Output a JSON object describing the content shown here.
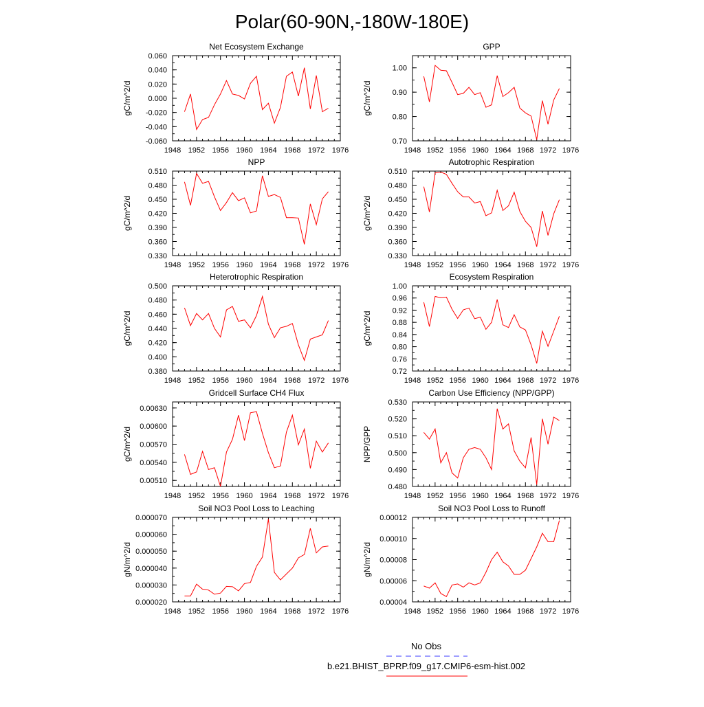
{
  "figure": {
    "title": "Polar(60-90N,-180W-180E)",
    "legend": {
      "entries": [
        {
          "label": "No Obs",
          "color": "#3c3cff",
          "style": "dashed"
        },
        {
          "label": "b.e21.BHIST_BPRP.f09_g17.CMIP6-esm-hist.002",
          "color": "#ff0000",
          "style": "solid"
        }
      ]
    }
  },
  "chart_data": [
    {
      "type": "line",
      "title": "Net Ecosystem Exchange",
      "ylabel": "gC/m^2/d",
      "xlim": [
        1948,
        1976
      ],
      "ylim": [
        -0.06,
        0.06
      ],
      "xticks": [
        "1948",
        "1952",
        "1956",
        "1960",
        "1964",
        "1968",
        "1972",
        "1976"
      ],
      "yticks": [
        "-0.060",
        "-0.040",
        "-0.020",
        "0.000",
        "0.020",
        "0.040",
        "0.060"
      ],
      "series": [
        {
          "color": "#ff0000",
          "x": [
            1950,
            1951,
            1952,
            1953,
            1954,
            1955,
            1956,
            1957,
            1958,
            1959,
            1960,
            1961,
            1962,
            1963,
            1964,
            1965,
            1966,
            1967,
            1968,
            1969,
            1970,
            1971,
            1972,
            1973,
            1974
          ],
          "values": [
            -0.019,
            0.006,
            -0.044,
            -0.03,
            -0.027,
            -0.009,
            0.006,
            0.025,
            0.006,
            0.004,
            -0.001,
            0.021,
            0.031,
            -0.016,
            -0.007,
            -0.035,
            -0.013,
            0.031,
            0.037,
            0.003,
            0.043,
            -0.015,
            0.032,
            -0.019,
            -0.014
          ]
        }
      ]
    },
    {
      "type": "line",
      "title": "GPP",
      "ylabel": "gC/m^2/d",
      "xlim": [
        1948,
        1976
      ],
      "ylim": [
        0.7,
        1.05
      ],
      "xticks": [
        "1948",
        "1952",
        "1956",
        "1960",
        "1964",
        "1968",
        "1972",
        "1976"
      ],
      "yticks": [
        "0.70",
        "0.80",
        "0.90",
        "1.00"
      ],
      "series": [
        {
          "color": "#ff0000",
          "x": [
            1950,
            1951,
            1952,
            1953,
            1954,
            1955,
            1956,
            1957,
            1958,
            1959,
            1960,
            1961,
            1962,
            1963,
            1964,
            1965,
            1966,
            1967,
            1968,
            1969,
            1970,
            1971,
            1972,
            1973,
            1974
          ],
          "values": [
            0.965,
            0.86,
            1.01,
            0.99,
            0.988,
            0.94,
            0.89,
            0.895,
            0.92,
            0.89,
            0.898,
            0.838,
            0.848,
            0.968,
            0.882,
            0.898,
            0.92,
            0.835,
            0.815,
            0.802,
            0.705,
            0.865,
            0.768,
            0.868,
            0.915
          ]
        }
      ]
    },
    {
      "type": "line",
      "title": "NPP",
      "ylabel": "gC/m^2/d",
      "xlim": [
        1948,
        1976
      ],
      "ylim": [
        0.33,
        0.51
      ],
      "xticks": [
        "1948",
        "1952",
        "1956",
        "1960",
        "1964",
        "1968",
        "1972",
        "1976"
      ],
      "yticks": [
        "0.330",
        "0.360",
        "0.390",
        "0.420",
        "0.450",
        "0.480",
        "0.510"
      ],
      "series": [
        {
          "color": "#ff0000",
          "x": [
            1950,
            1951,
            1952,
            1953,
            1954,
            1955,
            1956,
            1957,
            1958,
            1959,
            1960,
            1961,
            1962,
            1963,
            1964,
            1965,
            1966,
            1967,
            1968,
            1969,
            1970,
            1971,
            1972,
            1973,
            1974
          ],
          "values": [
            0.487,
            0.437,
            0.505,
            0.484,
            0.488,
            0.455,
            0.426,
            0.443,
            0.464,
            0.447,
            0.453,
            0.421,
            0.425,
            0.5,
            0.456,
            0.46,
            0.454,
            0.411,
            0.411,
            0.41,
            0.354,
            0.44,
            0.396,
            0.451,
            0.466
          ]
        }
      ]
    },
    {
      "type": "line",
      "title": "Autotrophic Respiration",
      "ylabel": "gC/m^2/d",
      "xlim": [
        1948,
        1976
      ],
      "ylim": [
        0.33,
        0.51
      ],
      "xticks": [
        "1948",
        "1952",
        "1956",
        "1960",
        "1964",
        "1968",
        "1972",
        "1976"
      ],
      "yticks": [
        "0.330",
        "0.360",
        "0.390",
        "0.420",
        "0.450",
        "0.480",
        "0.510"
      ],
      "series": [
        {
          "color": "#ff0000",
          "x": [
            1950,
            1951,
            1952,
            1953,
            1954,
            1955,
            1956,
            1957,
            1958,
            1959,
            1960,
            1961,
            1962,
            1963,
            1964,
            1965,
            1966,
            1967,
            1968,
            1969,
            1970,
            1971,
            1972,
            1973,
            1974
          ],
          "values": [
            0.477,
            0.423,
            0.506,
            0.508,
            0.503,
            0.484,
            0.466,
            0.455,
            0.455,
            0.442,
            0.445,
            0.415,
            0.421,
            0.469,
            0.426,
            0.436,
            0.465,
            0.424,
            0.403,
            0.39,
            0.349,
            0.425,
            0.373,
            0.419,
            0.449
          ]
        }
      ]
    },
    {
      "type": "line",
      "title": "Heterotrophic Respiration",
      "ylabel": "gC/m^2/d",
      "xlim": [
        1948,
        1976
      ],
      "ylim": [
        0.38,
        0.5
      ],
      "xticks": [
        "1948",
        "1952",
        "1956",
        "1960",
        "1964",
        "1968",
        "1972",
        "1976"
      ],
      "yticks": [
        "0.380",
        "0.400",
        "0.420",
        "0.440",
        "0.460",
        "0.480",
        "0.500"
      ],
      "series": [
        {
          "color": "#ff0000",
          "x": [
            1950,
            1951,
            1952,
            1953,
            1954,
            1955,
            1956,
            1957,
            1958,
            1959,
            1960,
            1961,
            1962,
            1963,
            1964,
            1965,
            1966,
            1967,
            1968,
            1969,
            1970,
            1971,
            1972,
            1973,
            1974
          ],
          "values": [
            0.469,
            0.444,
            0.461,
            0.452,
            0.461,
            0.44,
            0.428,
            0.466,
            0.471,
            0.45,
            0.452,
            0.441,
            0.458,
            0.485,
            0.446,
            0.427,
            0.441,
            0.443,
            0.447,
            0.417,
            0.395,
            0.425,
            0.428,
            0.431,
            0.451
          ]
        }
      ]
    },
    {
      "type": "line",
      "title": "Ecosystem Respiration",
      "ylabel": "gC/m^2/d",
      "xlim": [
        1948,
        1976
      ],
      "ylim": [
        0.72,
        1.0
      ],
      "xticks": [
        "1948",
        "1952",
        "1956",
        "1960",
        "1964",
        "1968",
        "1972",
        "1976"
      ],
      "yticks": [
        "0.72",
        "0.76",
        "0.80",
        "0.84",
        "0.88",
        "0.92",
        "0.96",
        "1.00"
      ],
      "series": [
        {
          "color": "#ff0000",
          "x": [
            1950,
            1951,
            1952,
            1953,
            1954,
            1955,
            1956,
            1957,
            1958,
            1959,
            1960,
            1961,
            1962,
            1963,
            1964,
            1965,
            1966,
            1967,
            1968,
            1969,
            1970,
            1971,
            1972,
            1973,
            1974
          ],
          "values": [
            0.946,
            0.866,
            0.965,
            0.961,
            0.963,
            0.923,
            0.893,
            0.921,
            0.927,
            0.892,
            0.897,
            0.857,
            0.88,
            0.955,
            0.872,
            0.863,
            0.905,
            0.865,
            0.855,
            0.806,
            0.745,
            0.851,
            0.801,
            0.851,
            0.9
          ]
        }
      ]
    },
    {
      "type": "line",
      "title": "Gridcell Surface CH4 Flux",
      "ylabel": "gC/m^2/d",
      "xlim": [
        1948,
        1976
      ],
      "ylim": [
        0.005,
        0.0064
      ],
      "xticks": [
        "1948",
        "1952",
        "1956",
        "1960",
        "1964",
        "1968",
        "1972",
        "1976"
      ],
      "yticks": [
        "0.00510",
        "0.00540",
        "0.00570",
        "0.00600",
        "0.00630"
      ],
      "series": [
        {
          "color": "#ff0000",
          "x": [
            1950,
            1951,
            1952,
            1953,
            1954,
            1955,
            1956,
            1957,
            1958,
            1959,
            1960,
            1961,
            1962,
            1963,
            1964,
            1965,
            1966,
            1967,
            1968,
            1969,
            1970,
            1971,
            1972,
            1973,
            1974
          ],
          "values": [
            0.00553,
            0.0052,
            0.00524,
            0.00558,
            0.00528,
            0.00531,
            0.005,
            0.00557,
            0.00578,
            0.00618,
            0.00576,
            0.00622,
            0.00624,
            0.00588,
            0.00556,
            0.00531,
            0.00534,
            0.0059,
            0.00618,
            0.00569,
            0.00595,
            0.0053,
            0.00575,
            0.00557,
            0.00572
          ]
        }
      ]
    },
    {
      "type": "line",
      "title": "Carbon Use Efficiency (NPP/GPP)",
      "ylabel": "NPP/GPP",
      "xlim": [
        1948,
        1976
      ],
      "ylim": [
        0.48,
        0.53
      ],
      "xticks": [
        "1948",
        "1952",
        "1956",
        "1960",
        "1964",
        "1968",
        "1972",
        "1976"
      ],
      "yticks": [
        "0.480",
        "0.490",
        "0.500",
        "0.510",
        "0.520",
        "0.530"
      ],
      "series": [
        {
          "color": "#ff0000",
          "x": [
            1950,
            1951,
            1952,
            1953,
            1954,
            1955,
            1956,
            1957,
            1958,
            1959,
            1960,
            1961,
            1962,
            1963,
            1964,
            1965,
            1966,
            1967,
            1968,
            1969,
            1970,
            1971,
            1972,
            1973,
            1974
          ],
          "values": [
            0.512,
            0.508,
            0.514,
            0.494,
            0.5,
            0.488,
            0.485,
            0.497,
            0.502,
            0.503,
            0.502,
            0.497,
            0.49,
            0.526,
            0.514,
            0.517,
            0.501,
            0.495,
            0.491,
            0.509,
            0.481,
            0.52,
            0.505,
            0.521,
            0.519
          ]
        }
      ]
    },
    {
      "type": "line",
      "title": "Soil NO3 Pool Loss to Leaching",
      "ylabel": "gN/m^2/d",
      "xlim": [
        1948,
        1976
      ],
      "ylim": [
        2e-05,
        7e-05
      ],
      "xticks": [
        "1948",
        "1952",
        "1956",
        "1960",
        "1964",
        "1968",
        "1972",
        "1976"
      ],
      "yticks": [
        "0.000020",
        "0.000030",
        "0.000040",
        "0.000050",
        "0.000060",
        "0.000070"
      ],
      "series": [
        {
          "color": "#ff0000",
          "x": [
            1950,
            1951,
            1952,
            1953,
            1954,
            1955,
            1956,
            1957,
            1958,
            1959,
            1960,
            1961,
            1962,
            1963,
            1964,
            1965,
            1966,
            1967,
            1968,
            1969,
            1970,
            1971,
            1972,
            1973,
            1974
          ],
          "values": [
            2.35e-05,
            2.35e-05,
            3.05e-05,
            2.75e-05,
            2.7e-05,
            2.45e-05,
            2.52e-05,
            2.92e-05,
            2.9e-05,
            2.65e-05,
            3.08e-05,
            3.15e-05,
            4.1e-05,
            4.65e-05,
            6.9e-05,
            3.75e-05,
            3.3e-05,
            3.65e-05,
            4e-05,
            4.6e-05,
            4.8e-05,
            6.35e-05,
            4.9e-05,
            5.25e-05,
            5.3e-05
          ]
        }
      ]
    },
    {
      "type": "line",
      "title": "Soil NO3 Pool Loss to Runoff",
      "ylabel": "gN/m^2/d",
      "xlim": [
        1948,
        1976
      ],
      "ylim": [
        4e-05,
        0.00012
      ],
      "xticks": [
        "1948",
        "1952",
        "1956",
        "1960",
        "1964",
        "1968",
        "1972",
        "1976"
      ],
      "yticks": [
        "0.00004",
        "0.00006",
        "0.00008",
        "0.00010",
        "0.00012"
      ],
      "series": [
        {
          "color": "#ff0000",
          "x": [
            1950,
            1951,
            1952,
            1953,
            1954,
            1955,
            1956,
            1957,
            1958,
            1959,
            1960,
            1961,
            1962,
            1963,
            1964,
            1965,
            1966,
            1967,
            1968,
            1969,
            1970,
            1971,
            1972,
            1973,
            1974
          ],
          "values": [
            5.5e-05,
            5.3e-05,
            5.8e-05,
            4.8e-05,
            4.5e-05,
            5.6e-05,
            5.7e-05,
            5.4e-05,
            5.8e-05,
            5.6e-05,
            5.8e-05,
            6.8e-05,
            8e-05,
            8.7e-05,
            7.8e-05,
            7.4e-05,
            6.6e-05,
            6.6e-05,
            7e-05,
            8.1e-05,
            9.2e-05,
            0.000105,
            9.7e-05,
            9.7e-05,
            0.000117
          ]
        }
      ]
    }
  ]
}
